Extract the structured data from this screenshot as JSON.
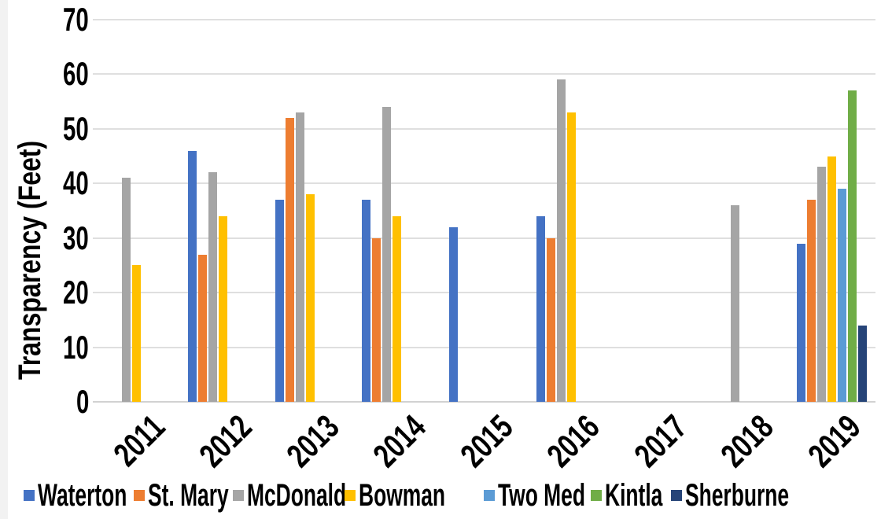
{
  "chart_data": {
    "type": "bar",
    "ylabel": "Transparency (Feet)",
    "xlabel": "",
    "ylim": [
      0,
      70
    ],
    "yticks": [
      0,
      10,
      20,
      30,
      40,
      50,
      60,
      70
    ],
    "grid": true,
    "legend_position": "bottom",
    "gridline_color": "#dfdfdf",
    "text_color": "#000000",
    "categories": [
      "2011",
      "2012",
      "2013",
      "2014",
      "2015",
      "2016",
      "2017",
      "2018",
      "2019"
    ],
    "series": [
      {
        "name": "Waterton",
        "color": "#4472C4",
        "values": [
          null,
          46,
          37,
          37,
          32,
          34,
          null,
          null,
          29
        ]
      },
      {
        "name": "St. Mary",
        "color": "#ED7D31",
        "values": [
          null,
          27,
          52,
          30,
          null,
          30,
          null,
          null,
          37
        ]
      },
      {
        "name": "McDonald",
        "color": "#A5A5A5",
        "values": [
          41,
          42,
          53,
          54,
          null,
          59,
          null,
          36,
          43
        ]
      },
      {
        "name": "Bowman",
        "color": "#FFC000",
        "values": [
          25,
          34,
          38,
          34,
          null,
          53,
          null,
          null,
          45
        ]
      },
      {
        "name": "Two Med",
        "color": "#5B9BD5",
        "values": [
          null,
          null,
          null,
          null,
          null,
          null,
          null,
          null,
          39
        ]
      },
      {
        "name": "Kintla",
        "color": "#70AD47",
        "values": [
          null,
          null,
          null,
          null,
          null,
          null,
          null,
          null,
          57
        ]
      },
      {
        "name": "Sherburne",
        "color": "#264478",
        "values": [
          null,
          null,
          null,
          null,
          null,
          null,
          null,
          null,
          14
        ]
      }
    ]
  }
}
